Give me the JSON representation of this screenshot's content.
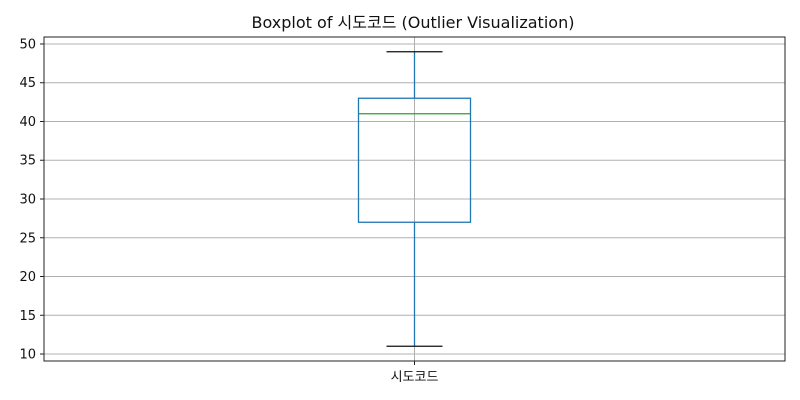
{
  "chart_data": {
    "type": "boxplot",
    "title": "Boxplot of 시도코드 (Outlier Visualization)",
    "xlabel": "",
    "ylabel": "",
    "categories": [
      "시도코드"
    ],
    "boxes": [
      {
        "category": "시도코드",
        "whisker_low": 11,
        "q1": 27,
        "median": 41,
        "q3": 43,
        "whisker_high": 49,
        "outliers": []
      }
    ],
    "y_ticks": [
      10,
      15,
      20,
      25,
      30,
      35,
      40,
      45,
      50
    ],
    "ylim": [
      9.1,
      50.9
    ],
    "grid": true,
    "colors": {
      "box": "#1f77b4",
      "median": "#2ca02c",
      "caps": "#111111",
      "grid": "#b0b0b0",
      "frame": "#222222"
    }
  }
}
